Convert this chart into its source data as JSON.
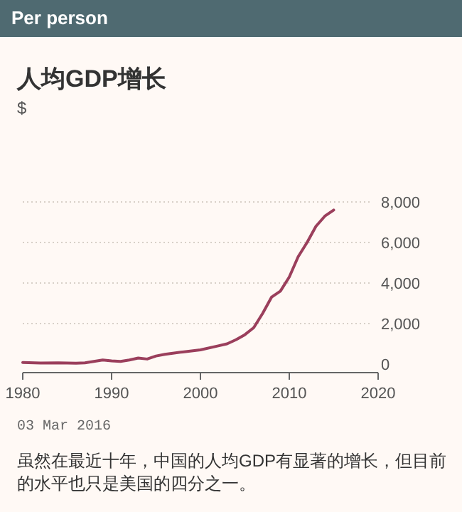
{
  "chart_data": {
    "type": "line",
    "title": "Per person",
    "subtitle": "人均GDP增长",
    "ylabel": "$",
    "x": [
      1980,
      1982,
      1984,
      1986,
      1987,
      1989,
      1990,
      1991,
      1992,
      1993,
      1994,
      1995,
      1996,
      1998,
      2000,
      2002,
      2003,
      2004,
      2005,
      2006,
      2007,
      2008,
      2009,
      2010,
      2011,
      2012,
      2013,
      2014,
      2015
    ],
    "series": [
      {
        "color": "#9b3f5c",
        "values": [
          80,
          50,
          60,
          40,
          60,
          200,
          160,
          130,
          200,
          300,
          250,
          400,
          480,
          600,
          700,
          900,
          1000,
          1200,
          1450,
          1800,
          2500,
          3300,
          3600,
          4300,
          5300,
          6000,
          6800,
          7300,
          7600
        ]
      }
    ],
    "xlim": [
      1980,
      2020
    ],
    "xticks": [
      1980,
      1990,
      2000,
      2010,
      2020
    ],
    "ylim": [
      0,
      8000
    ],
    "yticks": [
      {
        "value": 0,
        "label": "0"
      },
      {
        "value": 2000,
        "label": "2,000"
      },
      {
        "value": 4000,
        "label": "4,000"
      },
      {
        "value": 6000,
        "label": "6,000"
      },
      {
        "value": 8000,
        "label": "8,000"
      }
    ],
    "grid": "y",
    "marker": "none",
    "line_style": "solid",
    "annotations": [
      "03 Mar 2016",
      "虽然在最近十年，中国的人均GDP有显著的增长，但目前的水平也只是美国的四分之一。"
    ]
  }
}
